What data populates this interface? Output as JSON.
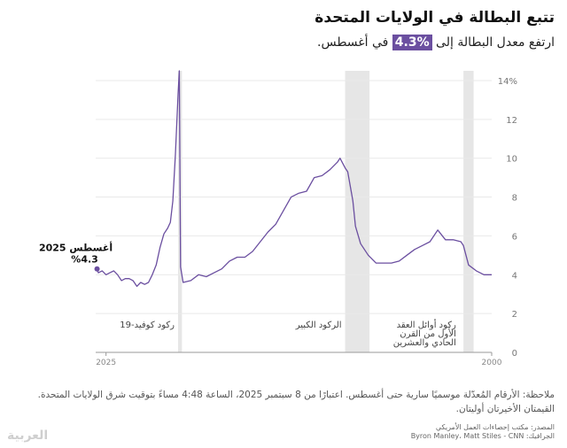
{
  "header": {
    "title": "تتبع البطالة في الولايات المتحدة",
    "subtitle_prefix": "ارتفع معدل البطالة إلى ",
    "subtitle_value": "%4.3",
    "subtitle_suffix": " في أغسطس."
  },
  "chart_data": {
    "type": "line",
    "x_direction": "right-to-left",
    "xlim": [
      2025.67,
      2000.0
    ],
    "ylim": [
      0,
      14.5
    ],
    "y_ticks": [
      "0",
      "2",
      "4",
      "6",
      "8",
      "10",
      "12",
      "14%"
    ],
    "x_ticks": [
      {
        "x": 2025,
        "label": "2025"
      },
      {
        "x": 2000,
        "label": "2000"
      }
    ],
    "series_color": "#6b4fa0",
    "grid": true,
    "current_point": {
      "x": 2025.58,
      "y": 4.3,
      "label_line1": "أغسطس 2025",
      "label_line2": "%4.3"
    },
    "recessions": [
      {
        "start": 2001.17,
        "end": 2001.83,
        "label": []
      },
      {
        "start": 2007.92,
        "end": 2009.5,
        "label": [
          "الركود الكبير"
        ]
      },
      {
        "start": 2020.08,
        "end": 2020.33,
        "label": [
          "ركود كوفيد-19"
        ]
      }
    ],
    "annotations": [
      {
        "x": 2001.5,
        "lines": [
          "ركود أوائل العقد",
          "الأول من القرن",
          "الحادي والعشرين"
        ]
      }
    ],
    "series": [
      {
        "points": [
          [
            2000.0,
            4.0
          ],
          [
            2000.5,
            4.0
          ],
          [
            2001.0,
            4.2
          ],
          [
            2001.5,
            4.5
          ],
          [
            2001.83,
            5.5
          ],
          [
            2002.0,
            5.7
          ],
          [
            2002.5,
            5.8
          ],
          [
            2003.0,
            5.8
          ],
          [
            2003.5,
            6.3
          ],
          [
            2004.0,
            5.7
          ],
          [
            2004.5,
            5.5
          ],
          [
            2005.0,
            5.3
          ],
          [
            2005.5,
            5.0
          ],
          [
            2006.0,
            4.7
          ],
          [
            2006.5,
            4.6
          ],
          [
            2007.0,
            4.6
          ],
          [
            2007.5,
            4.6
          ],
          [
            2008.0,
            5.0
          ],
          [
            2008.5,
            5.6
          ],
          [
            2008.83,
            6.5
          ],
          [
            2009.0,
            7.8
          ],
          [
            2009.33,
            9.3
          ],
          [
            2009.5,
            9.5
          ],
          [
            2009.83,
            10.0
          ],
          [
            2010.0,
            9.8
          ],
          [
            2010.5,
            9.4
          ],
          [
            2011.0,
            9.1
          ],
          [
            2011.5,
            9.0
          ],
          [
            2012.0,
            8.3
          ],
          [
            2012.5,
            8.2
          ],
          [
            2013.0,
            8.0
          ],
          [
            2013.5,
            7.3
          ],
          [
            2014.0,
            6.6
          ],
          [
            2014.5,
            6.2
          ],
          [
            2015.0,
            5.7
          ],
          [
            2015.5,
            5.2
          ],
          [
            2016.0,
            4.9
          ],
          [
            2016.5,
            4.9
          ],
          [
            2017.0,
            4.7
          ],
          [
            2017.5,
            4.3
          ],
          [
            2018.0,
            4.1
          ],
          [
            2018.5,
            3.9
          ],
          [
            2019.0,
            4.0
          ],
          [
            2019.5,
            3.7
          ],
          [
            2020.0,
            3.6
          ],
          [
            2020.17,
            4.4
          ],
          [
            2020.25,
            14.8
          ],
          [
            2020.33,
            13.3
          ],
          [
            2020.5,
            10.2
          ],
          [
            2020.67,
            7.8
          ],
          [
            2020.83,
            6.7
          ],
          [
            2021.0,
            6.4
          ],
          [
            2021.25,
            6.1
          ],
          [
            2021.5,
            5.4
          ],
          [
            2021.75,
            4.5
          ],
          [
            2022.0,
            4.0
          ],
          [
            2022.25,
            3.6
          ],
          [
            2022.5,
            3.5
          ],
          [
            2022.75,
            3.6
          ],
          [
            2023.0,
            3.4
          ],
          [
            2023.25,
            3.7
          ],
          [
            2023.5,
            3.8
          ],
          [
            2023.75,
            3.8
          ],
          [
            2024.0,
            3.7
          ],
          [
            2024.25,
            4.0
          ],
          [
            2024.5,
            4.2
          ],
          [
            2024.75,
            4.1
          ],
          [
            2025.0,
            4.0
          ],
          [
            2025.25,
            4.2
          ],
          [
            2025.5,
            4.1
          ],
          [
            2025.58,
            4.3
          ]
        ]
      }
    ]
  },
  "footer": {
    "note_line1": "ملاحظة: الأرقام المُعدّلة موسميًا سارية حتى أغسطس. اعتبارًا من 8 سبتمبر 2025، الساعة 4:48 مساءً بتوقيت شرق الولايات المتحدة.",
    "note_line2": "القيمتان الأخيرتان أوليتان.",
    "source_line1": "المصدر: مكتب إحصاءات العمل الأمريكي",
    "source_line2": "الجرافيك: Byron Manley، Matt Stiles - CNN",
    "logo_text": "العربية"
  }
}
